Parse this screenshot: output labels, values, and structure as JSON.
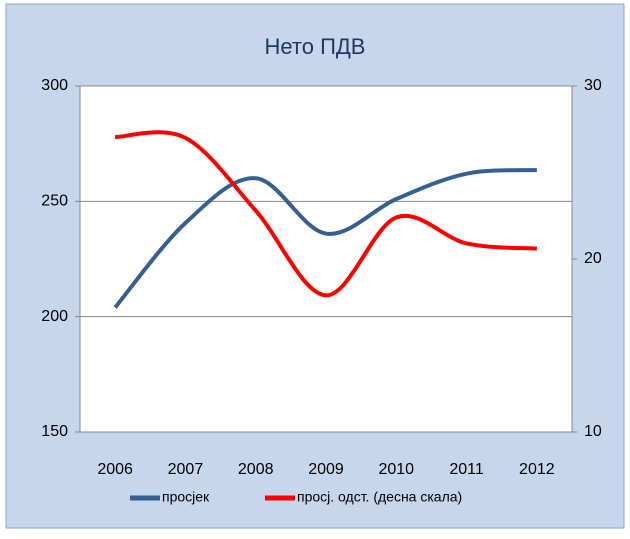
{
  "chart_data": {
    "type": "line",
    "title": "Нето ПДВ",
    "categories": [
      "2006",
      "2007",
      "2008",
      "2009",
      "2010",
      "2011",
      "2012"
    ],
    "series": [
      {
        "name": "просјек",
        "color": "#376092",
        "values": [
          204,
          240.6,
          260,
          236,
          251,
          262,
          263.6
        ]
      },
      {
        "name": "просј. одст. (десна скала)",
        "color": "#ff0000",
        "axis": "y2",
        "values": [
          27.05,
          27.0,
          22.8,
          17.9,
          22.4,
          20.9,
          20.6
        ]
      }
    ],
    "ylim": [
      150,
      300
    ],
    "yticks": [
      150,
      200,
      250,
      300
    ],
    "y2lim": [
      10,
      30
    ],
    "y2ticks": [
      10,
      20,
      30
    ],
    "grid": true,
    "legend": "bottom"
  }
}
